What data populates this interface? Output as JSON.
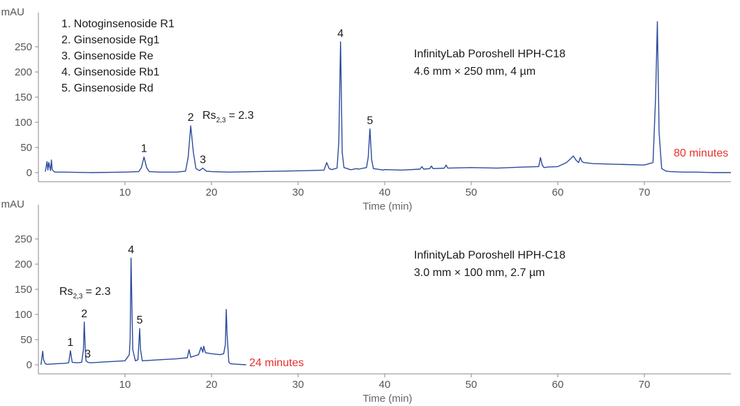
{
  "chart_data": [
    {
      "type": "line",
      "xlabel": "Time (min)",
      "ylabel": "mAU",
      "xlim": [
        0,
        80
      ],
      "ylim": [
        -18,
        318
      ],
      "xticks": [
        10,
        20,
        30,
        40,
        50,
        60,
        70
      ],
      "yticks": [
        0,
        50,
        100,
        150,
        200,
        250
      ],
      "legend": [
        "1. Notoginsenoside R1",
        "2. Ginsenoside Rg1",
        "3. Ginsenoside Re",
        "4. Ginsenoside Rb1",
        "5. Ginsenoside Rd"
      ],
      "column": [
        "InfinityLab Poroshell HPH-C18",
        "4.6 mm × 250 mm, 4 µm"
      ],
      "rs": {
        "base": "Rs",
        "sub": "2,3",
        "value": "= 2.3"
      },
      "runtime_label": "80 minutes",
      "runtime_color": "#e8312a",
      "line_color": "#2b4a9b",
      "peaks": [
        {
          "label": "1",
          "x": 12.2,
          "y": 31
        },
        {
          "label": "2",
          "x": 17.6,
          "y": 93
        },
        {
          "label": "3",
          "x": 19.0,
          "y": 9
        },
        {
          "label": "4",
          "x": 34.9,
          "y": 260
        },
        {
          "label": "5",
          "x": 38.3,
          "y": 87
        }
      ],
      "series": [
        {
          "x": [
            0.8,
            1.0,
            1.1,
            1.2,
            1.4,
            1.5,
            1.6,
            1.8,
            2.0,
            3.0,
            6.0,
            10.0,
            11.6,
            11.9,
            12.2,
            12.5,
            12.8,
            14.0,
            16.0,
            17.0,
            17.3,
            17.6,
            17.9,
            18.2,
            18.6,
            19.0,
            19.4,
            20.0,
            22.0,
            25.0,
            28.0,
            31.0,
            33.0,
            33.3,
            33.6,
            33.9,
            34.5,
            34.7,
            34.9,
            35.1,
            35.3,
            35.7,
            36.0,
            36.2,
            36.7,
            37.0,
            37.9,
            38.1,
            38.3,
            38.5,
            38.7,
            39.5,
            39.8,
            40.0,
            42.0,
            44.1,
            44.3,
            44.5,
            45.2,
            45.4,
            45.6,
            46.9,
            47.1,
            47.3,
            50.0,
            53.0,
            56.0,
            57.8,
            58.0,
            58.2,
            58.4,
            58.8,
            60.0,
            61.0,
            61.5,
            61.8,
            62.1,
            62.4,
            62.6,
            62.8,
            63.0,
            64.0,
            66.0,
            68.0,
            70.0,
            71.0,
            71.3,
            71.5,
            71.7,
            72.0,
            72.5,
            73.0,
            74.5,
            76.0,
            78.0,
            80.0
          ],
          "values": [
            2,
            22,
            5,
            20,
            4,
            25,
            6,
            2,
            1,
            1,
            0,
            1,
            2,
            10,
            31,
            10,
            2,
            1,
            1,
            3,
            30,
            93,
            40,
            8,
            4,
            9,
            3,
            2,
            1,
            2,
            3,
            4,
            5,
            20,
            8,
            6,
            9,
            60,
            260,
            40,
            10,
            8,
            6,
            6,
            8,
            7,
            10,
            30,
            87,
            25,
            8,
            6,
            5,
            6,
            5,
            7,
            12,
            7,
            8,
            13,
            8,
            9,
            15,
            9,
            10,
            9,
            11,
            12,
            30,
            15,
            10,
            11,
            12,
            20,
            28,
            33,
            25,
            20,
            30,
            22,
            20,
            18,
            17,
            16,
            15,
            20,
            150,
            300,
            80,
            8,
            3,
            2,
            1,
            1,
            0,
            0
          ]
        }
      ]
    },
    {
      "type": "line",
      "xlabel": "Time (min)",
      "ylabel": "mAU",
      "xlim": [
        0,
        80
      ],
      "ylim": [
        -18,
        318
      ],
      "xticks": [
        10,
        20,
        30,
        40,
        50,
        60,
        70
      ],
      "yticks": [
        0,
        50,
        100,
        150,
        200,
        250
      ],
      "column": [
        "InfinityLab Poroshell HPH-C18",
        "3.0 mm × 100 mm, 2.7 µm"
      ],
      "rs": {
        "base": "Rs",
        "sub": "2,3",
        "value": "= 2.3"
      },
      "runtime_label": "24 minutes",
      "runtime_color": "#e8312a",
      "line_color": "#2b4a9b",
      "peaks": [
        {
          "label": "1",
          "x": 3.7,
          "y": 28
        },
        {
          "label": "2",
          "x": 5.3,
          "y": 85
        },
        {
          "label": "3",
          "x": 5.7,
          "y": 5
        },
        {
          "label": "4",
          "x": 10.7,
          "y": 212
        },
        {
          "label": "5",
          "x": 11.7,
          "y": 72
        }
      ],
      "series": [
        {
          "x": [
            0.3,
            0.5,
            0.6,
            0.8,
            1.0,
            2.0,
            3.0,
            3.5,
            3.7,
            3.9,
            4.5,
            5.0,
            5.2,
            5.3,
            5.4,
            5.5,
            5.7,
            6.0,
            8.0,
            10.0,
            10.3,
            10.5,
            10.6,
            10.7,
            10.8,
            10.9,
            11.2,
            11.5,
            11.6,
            11.7,
            11.8,
            12.0,
            14.0,
            16.0,
            17.2,
            17.4,
            17.6,
            18.5,
            18.8,
            19.0,
            19.1,
            19.3,
            20.0,
            21.0,
            21.4,
            21.6,
            21.7,
            21.8,
            22.0,
            22.2,
            23.0,
            24.0
          ],
          "values": [
            0,
            27,
            10,
            2,
            1,
            2,
            3,
            4,
            28,
            5,
            4,
            5,
            30,
            85,
            35,
            8,
            5,
            4,
            6,
            8,
            15,
            20,
            50,
            212,
            120,
            30,
            8,
            10,
            40,
            72,
            30,
            8,
            10,
            12,
            14,
            30,
            15,
            20,
            35,
            25,
            37,
            24,
            22,
            20,
            22,
            40,
            110,
            60,
            5,
            2,
            1,
            0
          ]
        }
      ]
    }
  ]
}
